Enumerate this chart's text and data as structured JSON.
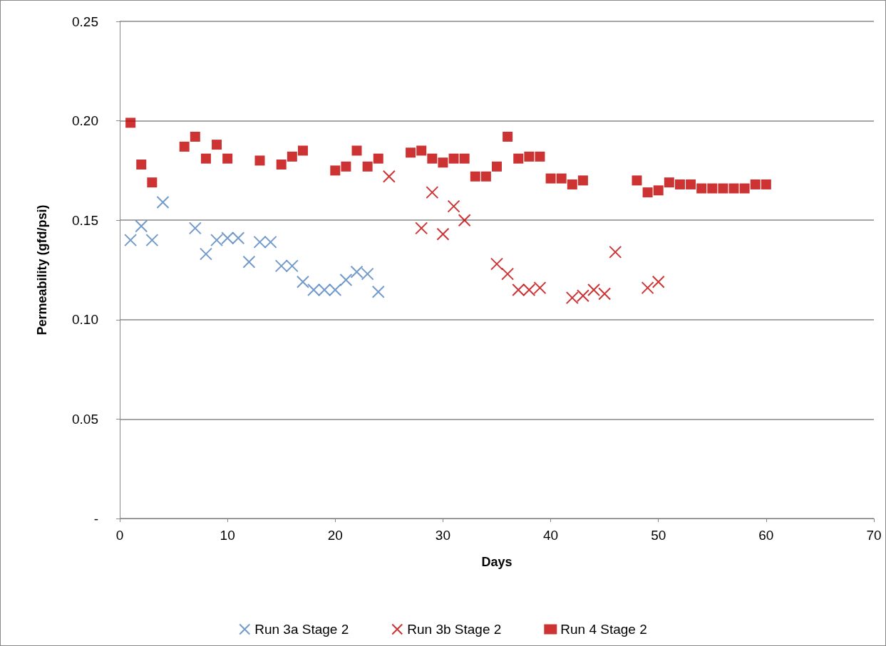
{
  "chart_data": {
    "type": "scatter",
    "xlabel": "Days",
    "ylabel": "Permeability (gfd/psi)",
    "xlim": [
      0,
      70
    ],
    "xticks": [
      0,
      10,
      20,
      30,
      40,
      50,
      60,
      70
    ],
    "ylim": [
      0,
      0.25
    ],
    "yticks": [
      {
        "value": 0,
        "label": "-"
      },
      {
        "value": 0.05,
        "label": "0.05"
      },
      {
        "value": 0.1,
        "label": "0.10"
      },
      {
        "value": 0.15,
        "label": "0.15"
      },
      {
        "value": 0.2,
        "label": "0.20"
      },
      {
        "value": 0.25,
        "label": "0.25"
      }
    ],
    "grid": "y",
    "legend": "bottom",
    "series": [
      {
        "name": "Run 3a Stage 2",
        "color": "#4f81bd",
        "marker": "cross",
        "x": [
          1,
          2,
          3,
          4,
          7,
          8,
          9,
          10,
          11,
          12,
          13,
          14,
          15,
          16,
          17,
          18,
          19,
          20,
          21,
          22,
          23,
          24
        ],
        "values": [
          0.14,
          0.147,
          0.14,
          0.159,
          0.146,
          0.133,
          0.14,
          0.141,
          0.141,
          0.129,
          0.139,
          0.139,
          0.127,
          0.127,
          0.119,
          0.115,
          0.115,
          0.115,
          0.12,
          0.124,
          0.123,
          0.114
        ]
      },
      {
        "name": "Run 3b Stage 2",
        "color": "#c00000",
        "marker": "cross",
        "x": [
          25,
          28,
          29,
          30,
          31,
          32,
          35,
          36,
          37,
          38,
          39,
          42,
          43,
          44,
          45,
          46,
          49,
          50
        ],
        "values": [
          0.172,
          0.146,
          0.164,
          0.143,
          0.157,
          0.15,
          0.128,
          0.123,
          0.115,
          0.115,
          0.116,
          0.111,
          0.112,
          0.115,
          0.113,
          0.134,
          0.116,
          0.119
        ]
      },
      {
        "name": "Run 4 Stage 2",
        "color": "#c00000",
        "marker": "square",
        "x": [
          1,
          2,
          3,
          6,
          7,
          8,
          9,
          10,
          13,
          15,
          16,
          17,
          20,
          21,
          22,
          23,
          24,
          27,
          28,
          29,
          30,
          31,
          32,
          33,
          34,
          35,
          36,
          37,
          38,
          39,
          40,
          41,
          42,
          43,
          48,
          49,
          50,
          51,
          52,
          53,
          54,
          55,
          56,
          57,
          58,
          59,
          60
        ],
        "values": [
          0.199,
          0.178,
          0.169,
          0.187,
          0.192,
          0.181,
          0.188,
          0.181,
          0.18,
          0.178,
          0.182,
          0.185,
          0.175,
          0.177,
          0.185,
          0.177,
          0.181,
          0.184,
          0.185,
          0.181,
          0.179,
          0.181,
          0.181,
          0.172,
          0.172,
          0.177,
          0.192,
          0.181,
          0.182,
          0.182,
          0.171,
          0.171,
          0.168,
          0.17,
          0.17,
          0.164,
          0.165,
          0.169,
          0.168,
          0.168,
          0.166,
          0.166,
          0.166,
          0.166,
          0.166,
          0.168,
          0.168
        ]
      }
    ]
  }
}
